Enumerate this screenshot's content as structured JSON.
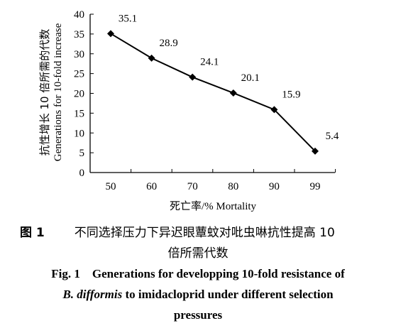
{
  "chart_data": {
    "type": "line",
    "categories": [
      "50",
      "60",
      "70",
      "80",
      "90",
      "99"
    ],
    "values": [
      35.1,
      28.9,
      24.1,
      20.1,
      15.9,
      5.4
    ],
    "value_labels": [
      "35.1",
      "28.9",
      "24.1",
      "20.1",
      "15.9",
      "5.4"
    ],
    "xlabel": "死亡率/% Mortality",
    "ylabel_cn": "抗性增长 10 倍所需的代数",
    "ylabel_en": "Generations for 10-fold increase",
    "ylim": [
      0,
      40
    ],
    "yticks": [
      "0",
      "5",
      "10",
      "15",
      "20",
      "25",
      "30",
      "35",
      "40"
    ],
    "marker": "diamond",
    "grid": false,
    "line_color": "#000000"
  },
  "caption": {
    "cn_fig": "图 1",
    "cn_text_1": "不同选择压力下异迟眼蕈蚊对吡虫啉抗性提高 10",
    "cn_text_2": "倍所需代数",
    "en_line_1": "Fig. 1    Generations for developping 10-fold resistance of",
    "en_species": "B. difformis",
    "en_line_2_rest": " to imidacloprid under different selection",
    "en_line_3": "pressures"
  }
}
